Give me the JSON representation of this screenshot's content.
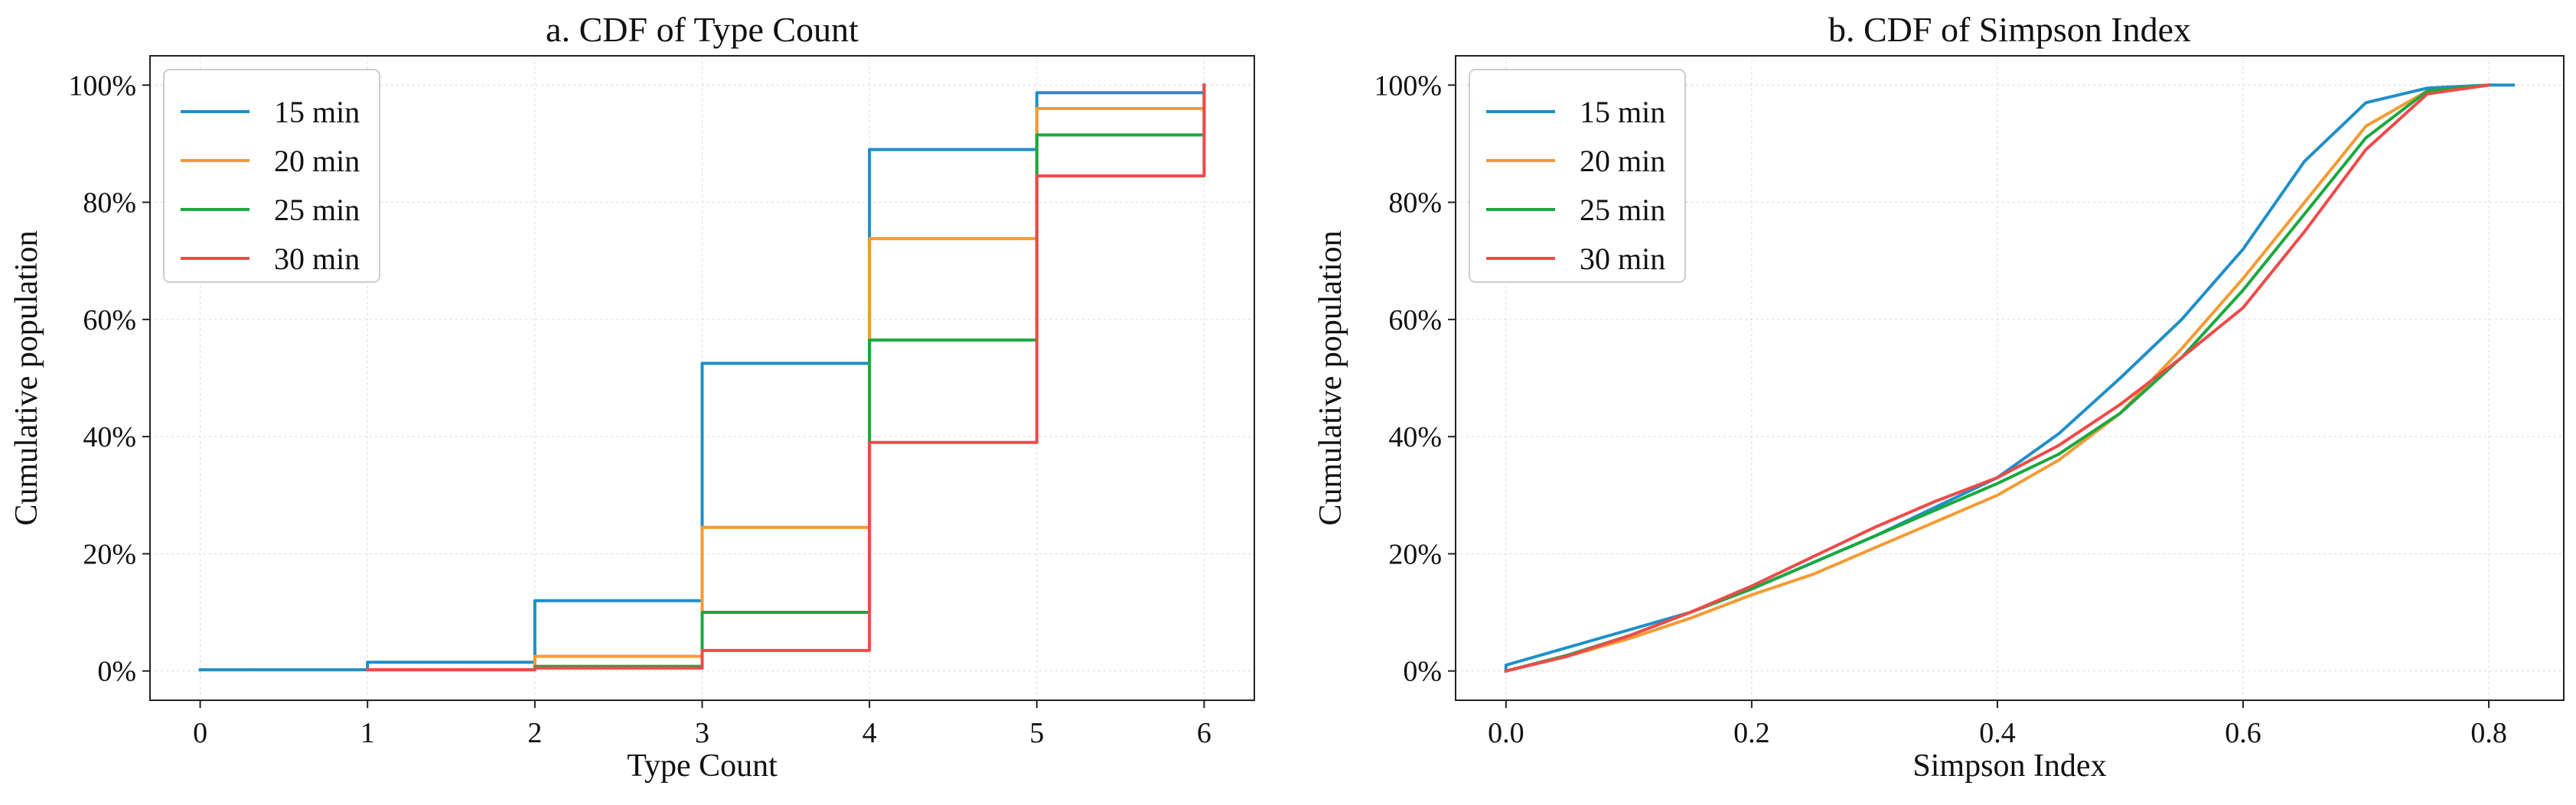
{
  "colors": {
    "15 min": "#1f8fc8",
    "20 min": "#f59a33",
    "25 min": "#1aa83f",
    "30 min": "#ef4a4a"
  },
  "chart_data": [
    {
      "type": "line",
      "subtype": "step",
      "title": "a. CDF of Type Count",
      "xlabel": "Type Count",
      "ylabel": "Cumulative population",
      "xlim": [
        -0.3,
        6.3
      ],
      "ylim": [
        -5,
        105
      ],
      "xticks": [
        0,
        1,
        2,
        3,
        4,
        5,
        6
      ],
      "xtick_labels": [
        "0",
        "1",
        "2",
        "3",
        "4",
        "5",
        "6"
      ],
      "yticks": [
        0,
        20,
        40,
        60,
        80,
        100
      ],
      "ytick_labels": [
        "0%",
        "20%",
        "40%",
        "60%",
        "80%",
        "100%"
      ],
      "grid": true,
      "legend": "top-left",
      "series": [
        {
          "name": "15 min",
          "x": [
            0,
            1,
            2,
            3,
            4,
            5,
            6
          ],
          "values": [
            0.2,
            1.5,
            12.0,
            52.5,
            89.0,
            98.7,
            100
          ]
        },
        {
          "name": "20 min",
          "x": [
            1,
            2,
            3,
            4,
            5,
            6
          ],
          "values": [
            0.2,
            2.5,
            24.5,
            73.8,
            96.0,
            100
          ]
        },
        {
          "name": "25 min",
          "x": [
            1,
            2,
            3,
            4,
            5,
            6
          ],
          "values": [
            0.2,
            0.8,
            10.0,
            56.5,
            91.5,
            100
          ]
        },
        {
          "name": "30 min",
          "x": [
            1,
            2,
            3,
            4,
            5,
            6
          ],
          "values": [
            0.2,
            0.5,
            3.5,
            39.0,
            84.5,
            100
          ]
        }
      ]
    },
    {
      "type": "line",
      "title": "b. CDF of Simpson Index",
      "xlabel": "Simpson Index",
      "ylabel": "Cumulative population",
      "xlim": [
        -0.041,
        0.861
      ],
      "ylim": [
        -5,
        105
      ],
      "xticks": [
        0,
        0.2,
        0.4,
        0.6,
        0.8
      ],
      "xtick_labels": [
        "0.0",
        "0.2",
        "0.4",
        "0.6",
        "0.8"
      ],
      "yticks": [
        0,
        20,
        40,
        60,
        80,
        100
      ],
      "ytick_labels": [
        "0%",
        "20%",
        "40%",
        "60%",
        "80%",
        "100%"
      ],
      "grid": true,
      "legend": "top-left",
      "series": [
        {
          "name": "15 min",
          "x": [
            0.0,
            0.0,
            0.05,
            0.1,
            0.15,
            0.2,
            0.25,
            0.3,
            0.35,
            0.4,
            0.45,
            0.5,
            0.55,
            0.6,
            0.65,
            0.7,
            0.75,
            0.8,
            0.82
          ],
          "values": [
            0.0,
            1.0,
            4.0,
            7.0,
            10.0,
            14.0,
            18.5,
            23.0,
            28.0,
            33.0,
            40.5,
            50.0,
            60.0,
            72.0,
            87.0,
            97.0,
            99.5,
            100.0,
            100.0
          ]
        },
        {
          "name": "20 min",
          "x": [
            0.0,
            0.05,
            0.1,
            0.15,
            0.2,
            0.25,
            0.3,
            0.35,
            0.4,
            0.45,
            0.5,
            0.55,
            0.6,
            0.65,
            0.7,
            0.75,
            0.8
          ],
          "values": [
            0.0,
            2.5,
            5.5,
            9.0,
            13.0,
            16.5,
            21.0,
            25.5,
            30.0,
            36.0,
            44.0,
            55.0,
            67.0,
            80.0,
            93.0,
            99.0,
            100.0
          ]
        },
        {
          "name": "25 min",
          "x": [
            0.0,
            0.05,
            0.1,
            0.15,
            0.2,
            0.25,
            0.3,
            0.35,
            0.4,
            0.45,
            0.5,
            0.55,
            0.6,
            0.65,
            0.7,
            0.75,
            0.8
          ],
          "values": [
            0.0,
            2.7,
            6.0,
            10.0,
            14.0,
            18.5,
            23.0,
            27.5,
            32.0,
            37.0,
            44.0,
            53.5,
            65.0,
            78.0,
            91.0,
            99.0,
            100.0
          ]
        },
        {
          "name": "30 min",
          "x": [
            0.0,
            0.05,
            0.1,
            0.15,
            0.2,
            0.25,
            0.3,
            0.35,
            0.4,
            0.45,
            0.5,
            0.55,
            0.6,
            0.65,
            0.7,
            0.75,
            0.8
          ],
          "values": [
            0.0,
            2.5,
            6.0,
            10.0,
            14.5,
            19.5,
            24.5,
            29.0,
            33.0,
            38.5,
            45.5,
            53.5,
            62.0,
            75.0,
            89.0,
            98.5,
            100.0
          ]
        }
      ]
    }
  ]
}
